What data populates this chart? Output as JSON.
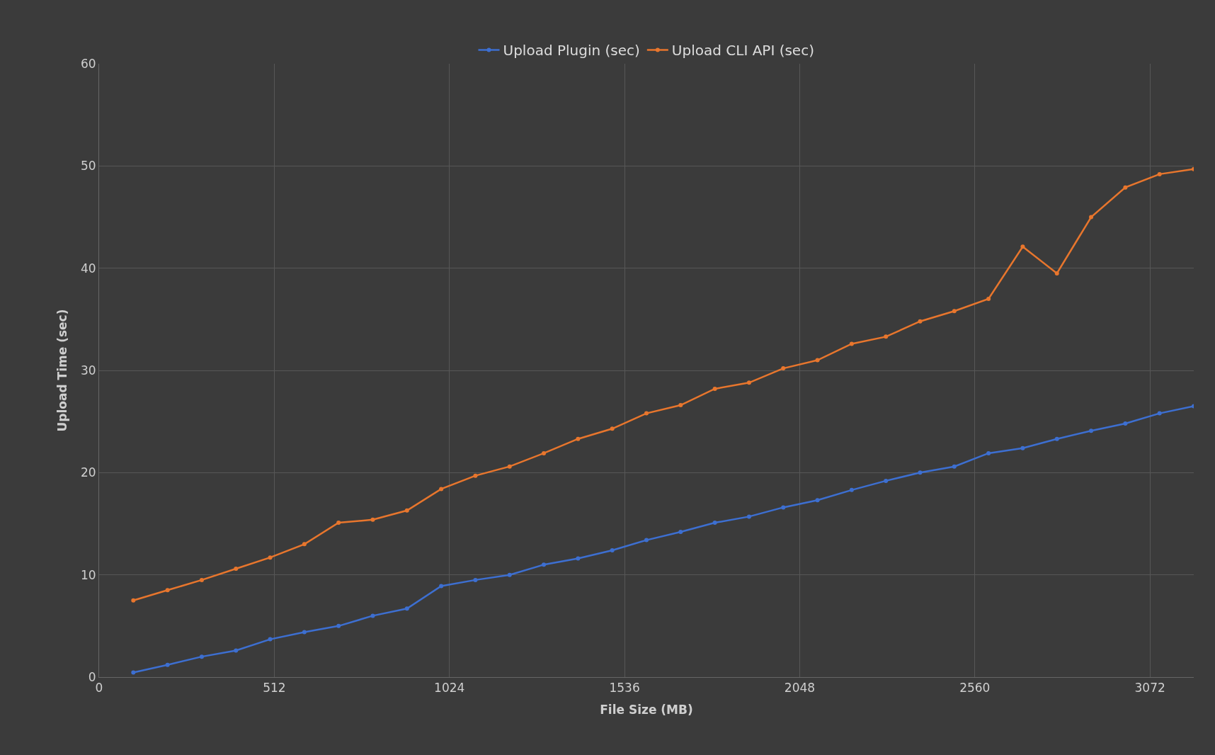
{
  "chart_data": {
    "type": "line",
    "xlabel": "File Size (MB)",
    "ylabel": "Upload Time (sec)",
    "x": [
      100,
      200,
      300,
      400,
      500,
      600,
      700,
      800,
      900,
      1000,
      1100,
      1200,
      1300,
      1400,
      1500,
      1600,
      1700,
      1800,
      1900,
      2000,
      2100,
      2200,
      2300,
      2400,
      2500,
      2600,
      2700,
      2800,
      2900,
      3000,
      3100,
      3200
    ],
    "series": [
      {
        "name": "Upload Plugin (sec)",
        "color": "#3d6fd1",
        "values": [
          0.45,
          1.2,
          2.0,
          2.6,
          3.7,
          4.4,
          5.0,
          6.0,
          6.7,
          8.9,
          9.5,
          10.0,
          11.0,
          11.6,
          12.4,
          13.4,
          14.2,
          15.1,
          15.7,
          16.6,
          17.3,
          18.3,
          19.2,
          20.0,
          20.6,
          21.9,
          22.4,
          23.3,
          24.1,
          24.8,
          25.8,
          26.5
        ]
      },
      {
        "name": "Upload CLI API (sec)",
        "color": "#e8762d",
        "values": [
          7.5,
          8.5,
          9.5,
          10.6,
          11.7,
          13.0,
          15.1,
          15.4,
          16.3,
          18.4,
          19.7,
          20.6,
          21.9,
          23.3,
          24.3,
          25.8,
          26.6,
          28.2,
          28.8,
          30.2,
          31.0,
          32.6,
          33.3,
          34.8,
          35.8,
          37.0,
          42.1,
          39.5,
          45.0,
          47.9,
          49.2,
          49.7
        ]
      }
    ],
    "xlim": [
      0,
      3200
    ],
    "xticks": [
      0,
      512,
      1024,
      1536,
      2048,
      2560,
      3072
    ],
    "ylim": [
      0,
      60
    ],
    "yticks": [
      0,
      10,
      20,
      30,
      40,
      50,
      60
    ],
    "grid": true,
    "legend": "top",
    "marker": "circle",
    "line_style": "solid"
  }
}
